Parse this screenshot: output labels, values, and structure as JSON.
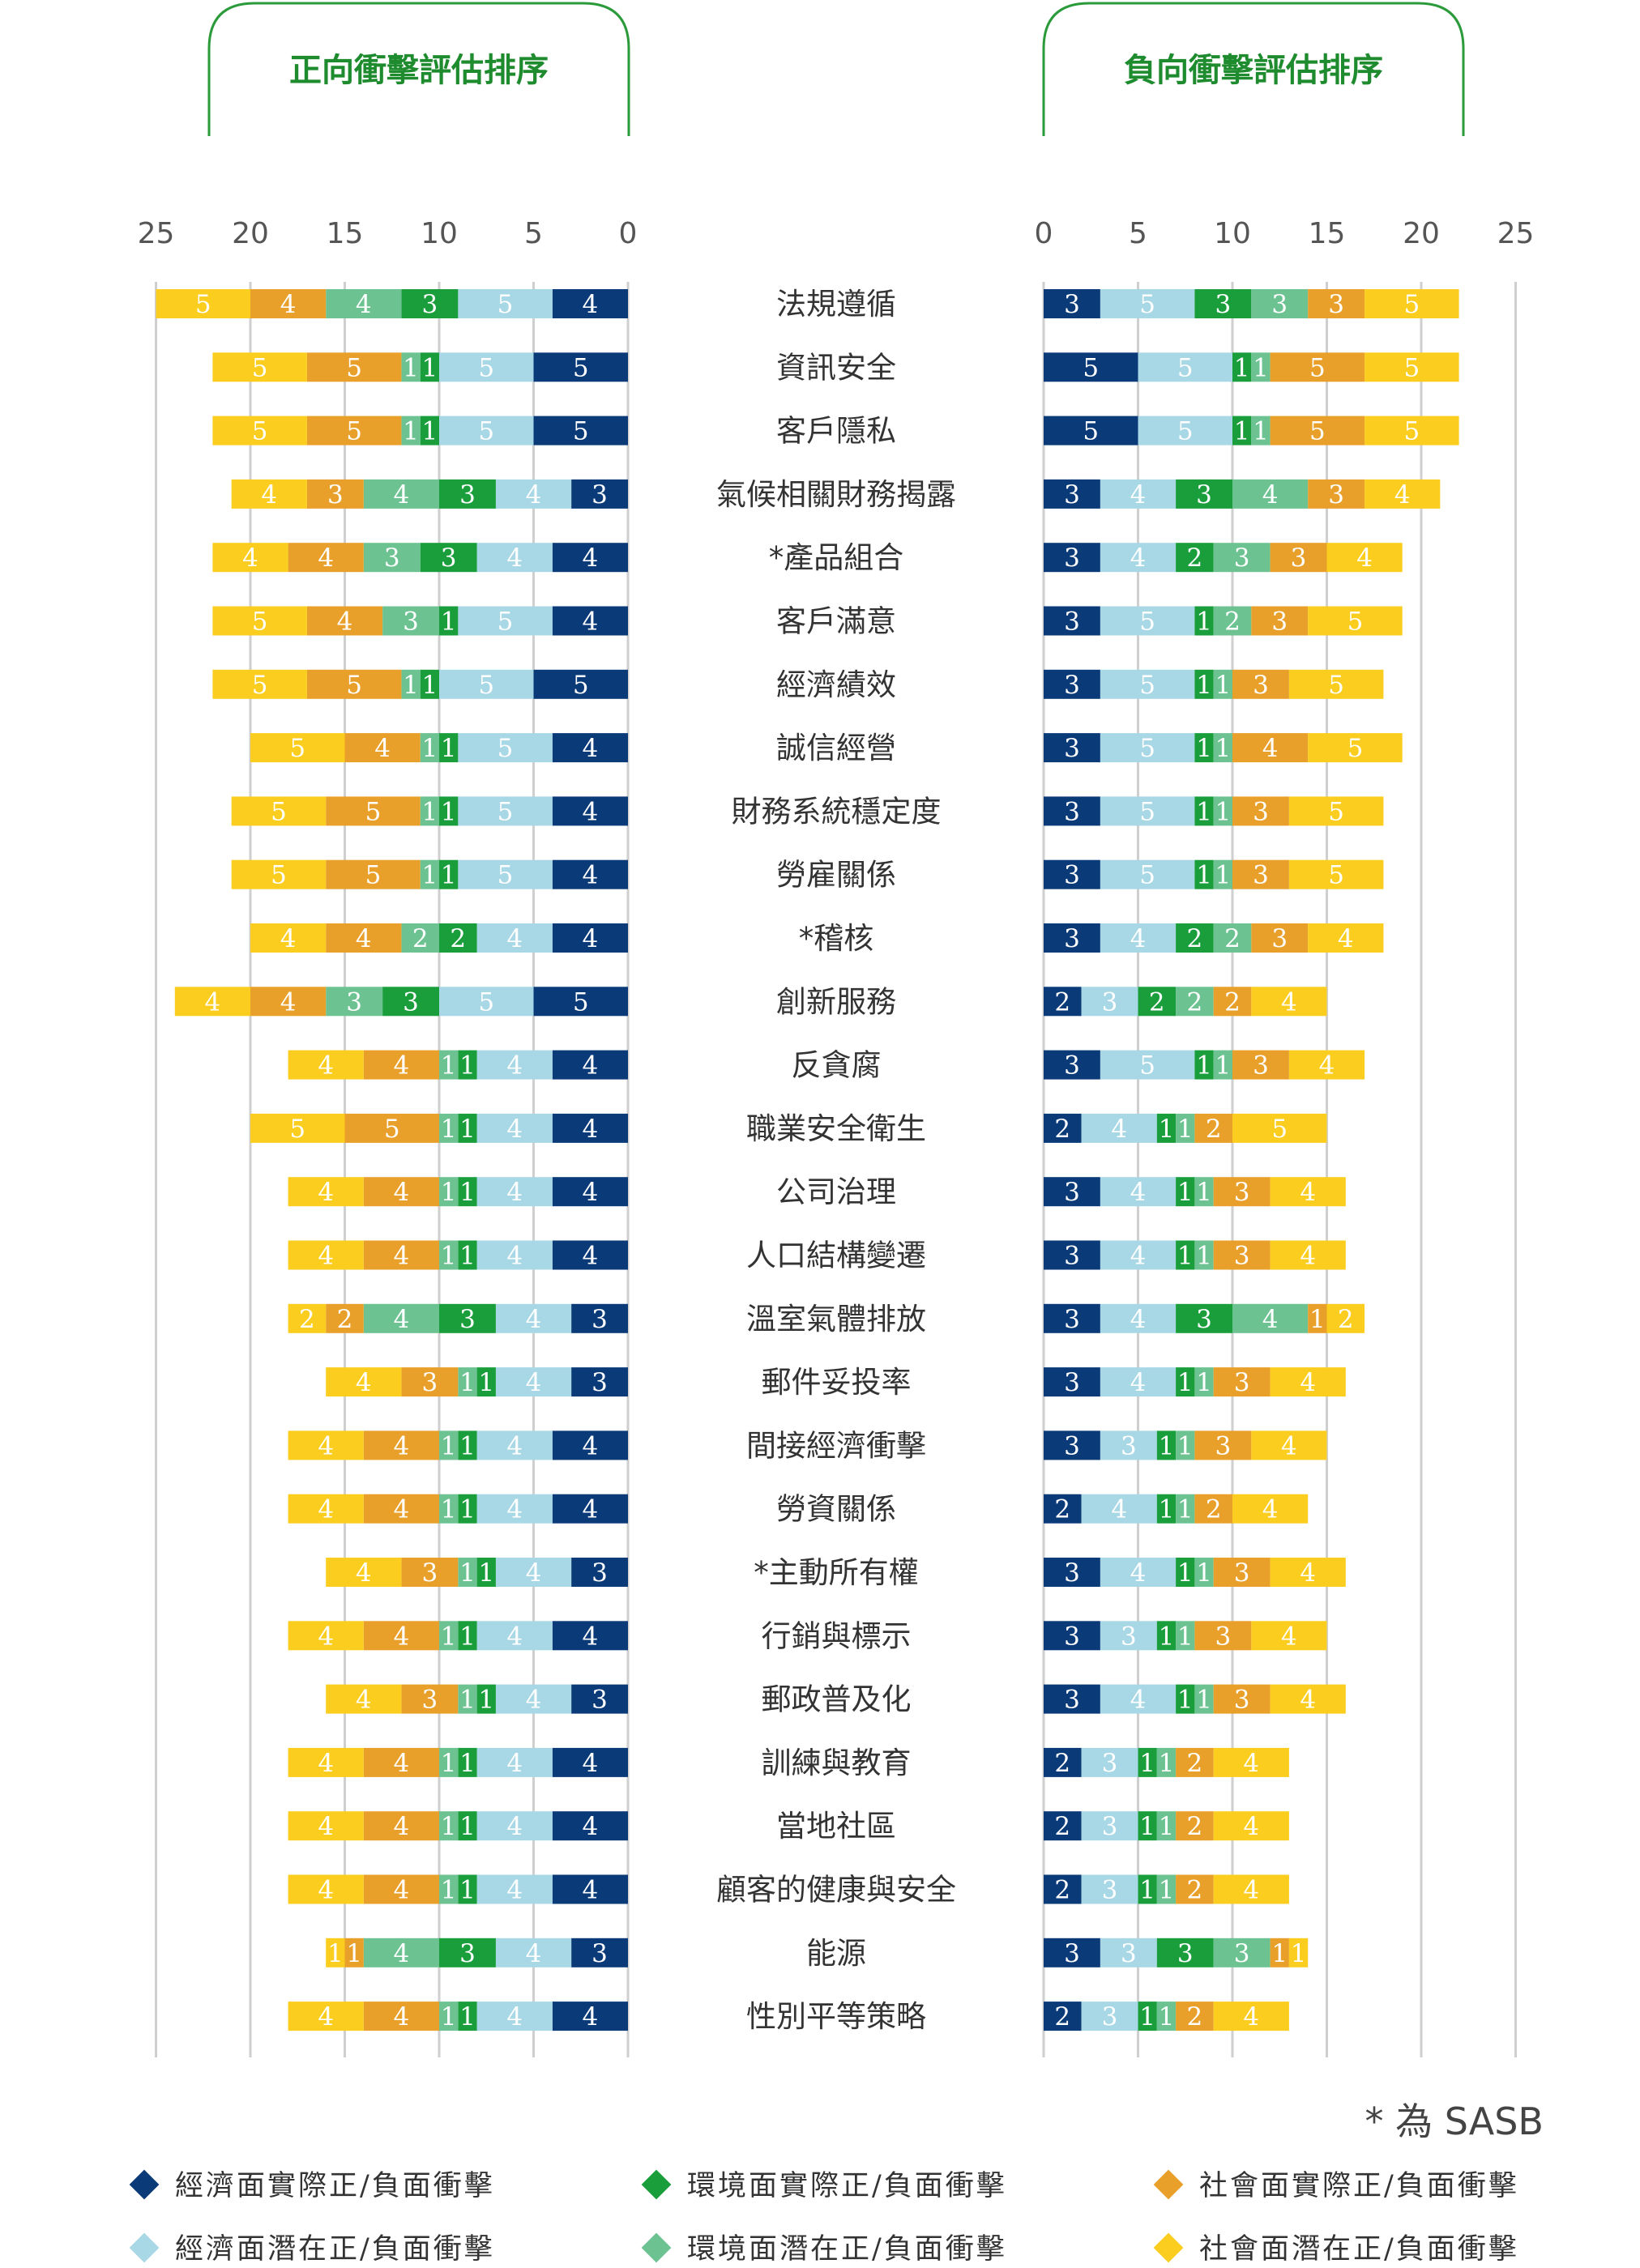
{
  "chart_data": [
    {
      "type": "bar",
      "orientation": "horizontal-stacked",
      "title": "正向衝擊評估排序",
      "x_direction": "reversed",
      "xlim": [
        0,
        25
      ],
      "x_ticks": [
        25,
        20,
        15,
        10,
        5,
        0
      ],
      "categories": [
        "法規遵循",
        "資訊安全",
        "客戶隱私",
        "氣候相關財務揭露",
        "*產品組合",
        "客戶滿意",
        "經濟績效",
        "誠信經營",
        "財務系統穩定度",
        "勞雇關係",
        "*稽核",
        "創新服務",
        "反貪腐",
        "職業安全衛生",
        "公司治理",
        "人口結構變遷",
        "溫室氣體排放",
        "郵件妥投率",
        "間接經濟衝擊",
        "勞資關係",
        "*主動所有權",
        "行銷與標示",
        "郵政普及化",
        "訓練與教育",
        "當地社區",
        "顧客的健康與安全",
        "能源",
        "性別平等策略"
      ],
      "series": [
        {
          "name": "經濟面實際正/負面衝擊",
          "color": "#0a3a78",
          "values": [
            4,
            5,
            5,
            3,
            4,
            4,
            5,
            4,
            4,
            4,
            4,
            5,
            4,
            4,
            4,
            4,
            3,
            3,
            4,
            4,
            3,
            4,
            3,
            4,
            4,
            4,
            3,
            4
          ]
        },
        {
          "name": "經濟面潛在正/負面衝擊",
          "color": "#a8d8e6",
          "values": [
            5,
            5,
            5,
            4,
            4,
            5,
            5,
            5,
            5,
            5,
            4,
            5,
            4,
            4,
            4,
            4,
            4,
            4,
            4,
            4,
            4,
            4,
            4,
            4,
            4,
            4,
            4,
            4
          ]
        },
        {
          "name": "環境面實際正/負面衝擊",
          "color": "#1a9e3c",
          "values": [
            3,
            1,
            1,
            3,
            3,
            1,
            1,
            1,
            1,
            1,
            2,
            3,
            1,
            1,
            1,
            1,
            3,
            1,
            1,
            1,
            1,
            1,
            1,
            1,
            1,
            1,
            3,
            1
          ]
        },
        {
          "name": "環境面潛在正/負面衝擊",
          "color": "#6cc391",
          "values": [
            4,
            1,
            1,
            4,
            3,
            3,
            1,
            1,
            1,
            1,
            2,
            3,
            1,
            1,
            1,
            1,
            4,
            1,
            1,
            1,
            1,
            1,
            1,
            1,
            1,
            1,
            4,
            1
          ]
        },
        {
          "name": "社會面實際正/負面衝擊",
          "color": "#e8a02a",
          "values": [
            4,
            5,
            5,
            3,
            4,
            4,
            5,
            4,
            5,
            5,
            4,
            4,
            4,
            5,
            4,
            4,
            2,
            3,
            4,
            4,
            3,
            4,
            3,
            4,
            4,
            4,
            1,
            4
          ]
        },
        {
          "name": "社會面潛在正/負面衝擊",
          "color": "#fbcd1f",
          "values": [
            5,
            5,
            5,
            4,
            4,
            5,
            5,
            5,
            5,
            5,
            4,
            4,
            4,
            5,
            4,
            4,
            2,
            4,
            4,
            4,
            4,
            4,
            4,
            4,
            4,
            4,
            1,
            4
          ]
        }
      ]
    },
    {
      "type": "bar",
      "orientation": "horizontal-stacked",
      "title": "負向衝擊評估排序",
      "xlim": [
        0,
        25
      ],
      "x_ticks": [
        0,
        5,
        10,
        15,
        20,
        25
      ],
      "categories": [
        "法規遵循",
        "資訊安全",
        "客戶隱私",
        "氣候相關財務揭露",
        "*產品組合",
        "客戶滿意",
        "經濟績效",
        "誠信經營",
        "財務系統穩定度",
        "勞雇關係",
        "*稽核",
        "創新服務",
        "反貪腐",
        "職業安全衛生",
        "公司治理",
        "人口結構變遷",
        "溫室氣體排放",
        "郵件妥投率",
        "間接經濟衝擊",
        "勞資關係",
        "*主動所有權",
        "行銷與標示",
        "郵政普及化",
        "訓練與教育",
        "當地社區",
        "顧客的健康與安全",
        "能源",
        "性別平等策略"
      ],
      "series": [
        {
          "name": "經濟面實際正/負面衝擊",
          "color": "#0a3a78",
          "values": [
            3,
            5,
            5,
            3,
            3,
            3,
            3,
            3,
            3,
            3,
            3,
            2,
            3,
            2,
            3,
            3,
            3,
            3,
            3,
            2,
            3,
            3,
            3,
            2,
            2,
            2,
            3,
            2
          ]
        },
        {
          "name": "經濟面潛在正/負面衝擊",
          "color": "#a8d8e6",
          "values": [
            5,
            5,
            5,
            4,
            4,
            5,
            5,
            5,
            5,
            5,
            4,
            3,
            5,
            4,
            4,
            4,
            4,
            4,
            3,
            4,
            4,
            3,
            4,
            3,
            3,
            3,
            3,
            3
          ]
        },
        {
          "name": "環境面實際正/負面衝擊",
          "color": "#1a9e3c",
          "values": [
            3,
            1,
            1,
            3,
            2,
            1,
            1,
            1,
            1,
            1,
            2,
            2,
            1,
            1,
            1,
            1,
            3,
            1,
            1,
            1,
            1,
            1,
            1,
            1,
            1,
            1,
            3,
            1
          ]
        },
        {
          "name": "環境面潛在正/負面衝擊",
          "color": "#6cc391",
          "values": [
            3,
            1,
            1,
            4,
            3,
            2,
            1,
            1,
            1,
            1,
            2,
            2,
            1,
            1,
            1,
            1,
            4,
            1,
            1,
            1,
            1,
            1,
            1,
            1,
            1,
            1,
            3,
            1
          ]
        },
        {
          "name": "社會面實際正/負面衝擊",
          "color": "#e8a02a",
          "values": [
            3,
            5,
            5,
            3,
            3,
            3,
            3,
            4,
            3,
            3,
            3,
            2,
            3,
            2,
            3,
            3,
            1,
            3,
            3,
            2,
            3,
            3,
            3,
            2,
            2,
            2,
            1,
            2
          ]
        },
        {
          "name": "社會面潛在正/負面衝擊",
          "color": "#fbcd1f",
          "values": [
            5,
            5,
            5,
            4,
            4,
            5,
            5,
            5,
            5,
            5,
            4,
            4,
            4,
            5,
            4,
            4,
            2,
            4,
            4,
            4,
            4,
            4,
            4,
            4,
            4,
            4,
            1,
            4
          ]
        }
      ]
    }
  ],
  "note": "* 為 SASB",
  "legend": [
    {
      "label": "經濟面實際正/負面衝擊",
      "color": "#0a3a78",
      "icon": "diamond-icon"
    },
    {
      "label": "環境面實際正/負面衝擊",
      "color": "#1a9e3c",
      "icon": "diamond-icon"
    },
    {
      "label": "社會面實際正/負面衝擊",
      "color": "#e8a02a",
      "icon": "diamond-icon"
    },
    {
      "label": "經濟面潛在正/負面衝擊",
      "color": "#a8d8e6",
      "icon": "diamond-icon"
    },
    {
      "label": "環境面潛在正/負面衝擊",
      "color": "#6cc391",
      "icon": "diamond-icon"
    },
    {
      "label": "社會面潛在正/負面衝擊",
      "color": "#fbcd1f",
      "icon": "diamond-icon"
    }
  ]
}
